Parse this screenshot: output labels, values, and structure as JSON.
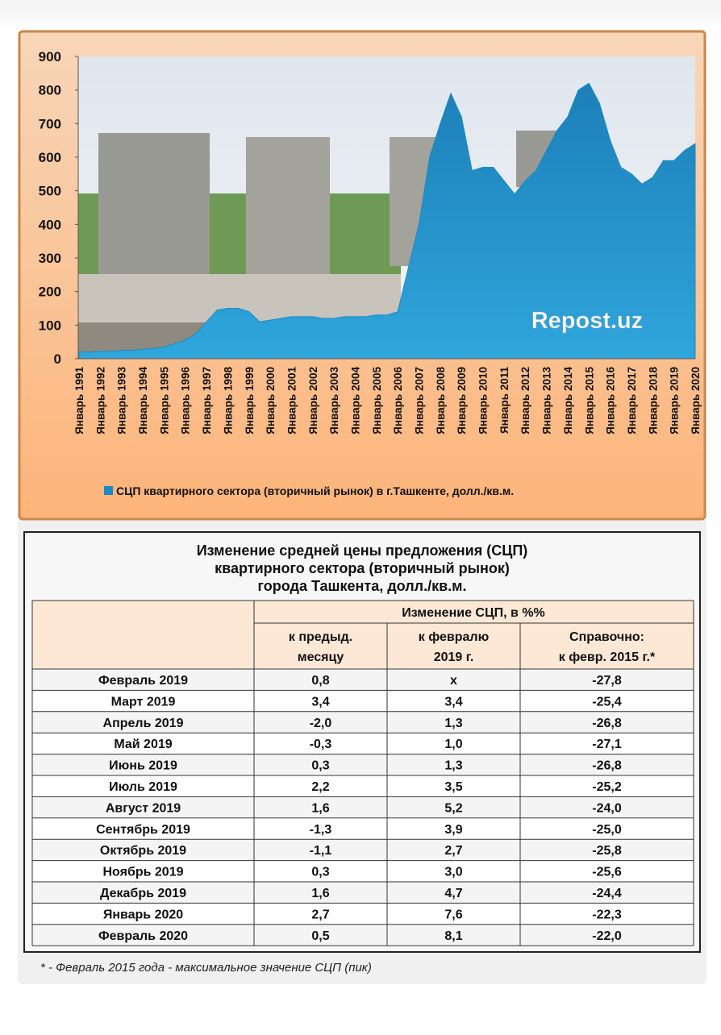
{
  "chart_data": {
    "type": "area",
    "categories": [
      "Январь 1991",
      null,
      "Январь 1992",
      null,
      "Январь 1993",
      null,
      "Январь 1994",
      null,
      "Январь 1995",
      null,
      "Январь 1996",
      null,
      "Январь 1997",
      null,
      "Январь 1998",
      null,
      "Январь 1999",
      null,
      "Январь 2000",
      null,
      "Январь 2001",
      null,
      "Январь 2002",
      null,
      "Январь 2003",
      null,
      "Январь 2004",
      null,
      "Январь 2005",
      null,
      "Январь 2006",
      null,
      "Январь 2007",
      null,
      "Январь 2008",
      null,
      "Январь 2009",
      null,
      "Январь 2010",
      null,
      "Январь 2011",
      null,
      "Январь 2012",
      null,
      "Январь 2013",
      null,
      "Январь 2014",
      null,
      "Январь 2015",
      null,
      "Январь 2016",
      null,
      "Январь 2017",
      null,
      "Январь 2018",
      null,
      "Январь 2019",
      null,
      "Январь 2020"
    ],
    "series": [
      {
        "name": "СЦП квартирного  сектора (вторичный рынок) в г.Ташкенте, долл./кв.м.",
        "color": "#1a8ac4",
        "values": [
          20,
          20,
          22,
          22,
          25,
          25,
          28,
          30,
          35,
          45,
          55,
          75,
          110,
          145,
          150,
          150,
          140,
          110,
          115,
          120,
          125,
          125,
          125,
          120,
          120,
          125,
          125,
          125,
          130,
          130,
          140,
          270,
          400,
          600,
          700,
          790,
          720,
          560,
          570,
          570,
          530,
          490,
          530,
          560,
          620,
          680,
          720,
          800,
          820,
          760,
          650,
          570,
          550,
          520,
          540,
          590,
          590,
          620,
          640
        ]
      }
    ],
    "ylim": [
      0,
      900
    ],
    "yticks": [
      0,
      100,
      200,
      300,
      400,
      500,
      600,
      700,
      800,
      900
    ],
    "watermark": "Repost.uz"
  },
  "table": {
    "title": [
      "Изменение средней цены предложения (СЦП)",
      "квартирного сектора (вторичный рынок)",
      "города Ташкента, долл./кв.м."
    ],
    "group_header": "Изменение СЦП, в %%",
    "columns": [
      [
        "к предыд.",
        "месяцу"
      ],
      [
        "к февралю",
        "2019 г."
      ],
      [
        "Справочно:",
        "к февр. 2015 г.*"
      ]
    ],
    "rows": [
      [
        "Февраль 2019",
        "0,8",
        "х",
        "-27,8"
      ],
      [
        "Март 2019",
        "3,4",
        "3,4",
        "-25,4"
      ],
      [
        "Апрель 2019",
        "-2,0",
        "1,3",
        "-26,8"
      ],
      [
        "Май 2019",
        "-0,3",
        "1,0",
        "-27,1"
      ],
      [
        "Июнь 2019",
        "0,3",
        "1,3",
        "-26,8"
      ],
      [
        "Июль 2019",
        "2,2",
        "3,5",
        "-25,2"
      ],
      [
        "Август 2019",
        "1,6",
        "5,2",
        "-24,0"
      ],
      [
        "Сентябрь 2019",
        "-1,3",
        "3,9",
        "-25,0"
      ],
      [
        "Октябрь 2019",
        "-1,1",
        "2,7",
        "-25,8"
      ],
      [
        "Ноябрь 2019",
        "0,3",
        "3,0",
        "-25,6"
      ],
      [
        "Декабрь 2019",
        "1,6",
        "4,7",
        "-24,4"
      ],
      [
        "Январь 2020",
        "2,7",
        "7,6",
        "-22,3"
      ],
      [
        "Февраль 2020",
        "0,5",
        "8,1",
        "-22,0"
      ]
    ],
    "footnote": "* - Февраль 2015 года - максимальное значение СЦП (пик)"
  }
}
